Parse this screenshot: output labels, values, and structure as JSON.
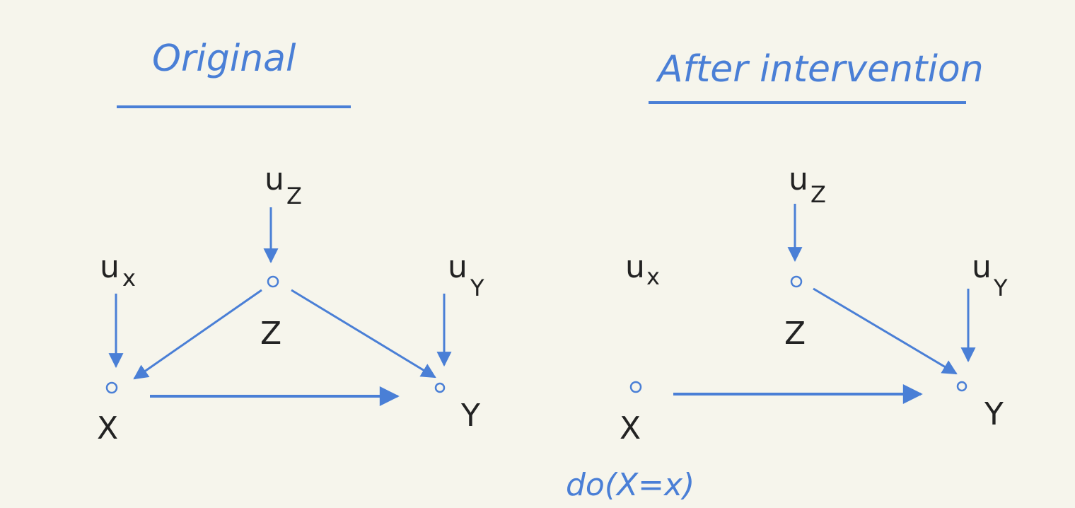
{
  "original": {
    "title": "Original",
    "labels": {
      "X": "X",
      "Y": "Y",
      "Z": "Z",
      "Ux": "u",
      "UxSub": "x",
      "Uy": "u",
      "UySub": "Y",
      "Uz": "u",
      "UzSub": "Z"
    },
    "edges": [
      "Uz->Z",
      "Ux->X",
      "Uy->Y",
      "Z->X",
      "Z->Y",
      "X->Y"
    ]
  },
  "intervention": {
    "title": "After intervention",
    "labels": {
      "X": "X",
      "Y": "Y",
      "Z": "Z",
      "Ux": "u",
      "UxSub": "x",
      "Uy": "u",
      "UySub": "Y",
      "Uz": "u",
      "UzSub": "Z"
    },
    "edges": [
      "Uz->Z",
      "Uy->Y",
      "Z->Y",
      "X->Y"
    ],
    "operator": "do(X=x)"
  },
  "colors": {
    "ink": "#4a7fd6",
    "text": "#222222",
    "background": "#f6f5ec"
  }
}
